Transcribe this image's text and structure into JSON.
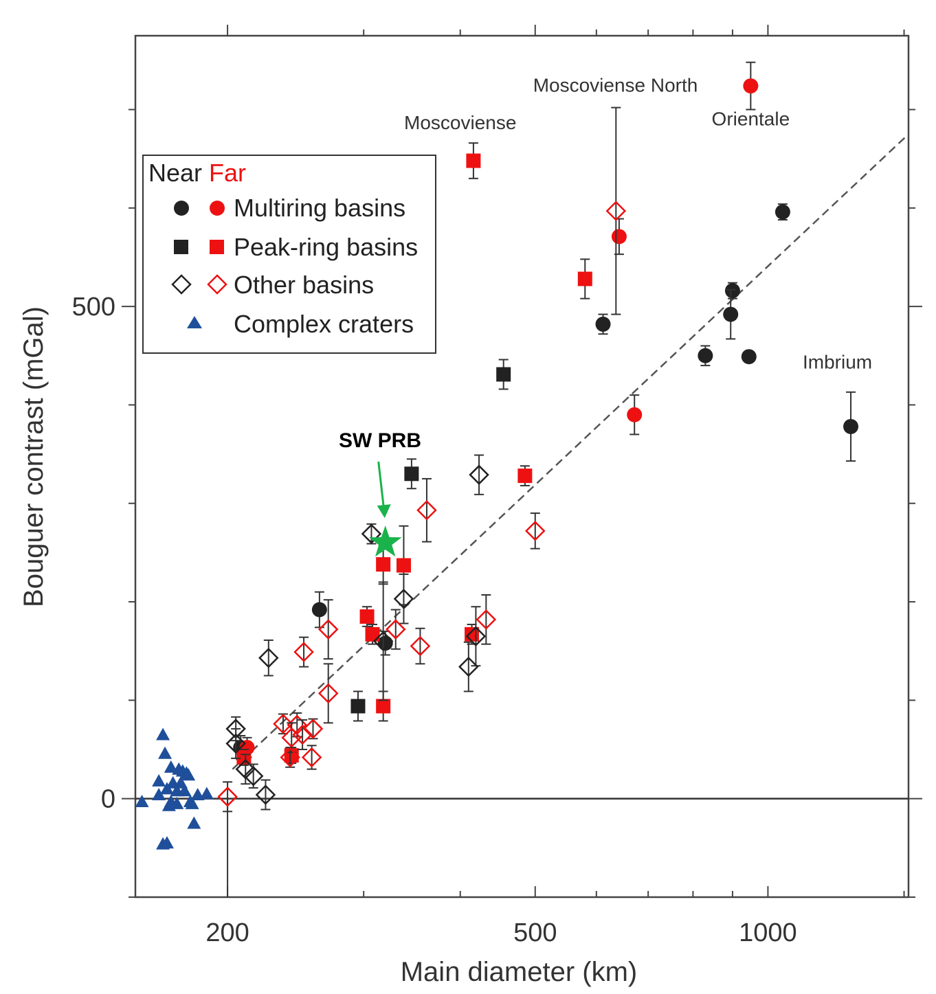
{
  "chart_data": {
    "type": "scatter",
    "xlabel": "Main diameter (km)",
    "ylabel": "Bouguer contrast (mGal)",
    "x_scale": "log",
    "xlim": [
      152,
      1520
    ],
    "ylim": [
      -100,
      775
    ],
    "x_ticks": [
      200,
      500,
      1000
    ],
    "y_ticks": [
      0,
      500
    ],
    "colors": {
      "near": "#222222",
      "far": "#ee1111",
      "crater": "#1f4f9a",
      "sw_prb": "#19b24b",
      "trend": "#555555"
    },
    "legend": {
      "header_near": "Near",
      "header_far": "Far",
      "placement": "top-left",
      "entries": [
        {
          "label": "Multiring basins",
          "marker": "circle"
        },
        {
          "label": "Peak-ring basins",
          "marker": "square"
        },
        {
          "label": "Other basins",
          "marker": "diamond"
        },
        {
          "label": "Complex craters",
          "marker": "triangle"
        }
      ]
    },
    "trendline": {
      "style": "dashed",
      "points": [
        [
          203,
          30
        ],
        [
          1520,
          675
        ]
      ]
    },
    "zero_line": 0,
    "annotations": [
      {
        "text": "Moscoviense",
        "x": 400,
        "y": 680
      },
      {
        "text": "Moscoviense North",
        "x": 635,
        "y": 718
      },
      {
        "text": "Orientale",
        "x": 950,
        "y": 684
      },
      {
        "text": "Imbrium",
        "x": 1230,
        "y": 437
      },
      {
        "text": "SW PRB",
        "x": 315,
        "y": 357
      }
    ],
    "sw_prb": {
      "x": 320,
      "y": 260
    },
    "series": [
      {
        "name": "Multiring basins",
        "side": "near",
        "marker": "circle",
        "points": [
          {
            "x": 612,
            "y": 482,
            "err": 10
          },
          {
            "x": 830,
            "y": 450,
            "err": 10
          },
          {
            "x": 900,
            "y": 516,
            "err": 8
          },
          {
            "x": 895,
            "y": 492,
            "err": 25
          },
          {
            "x": 945,
            "y": 449,
            "err": 5
          },
          {
            "x": 1045,
            "y": 596,
            "err": 8
          },
          {
            "x": 1280,
            "y": 378,
            "err": 35
          },
          {
            "x": 263,
            "y": 192,
            "err": 18
          },
          {
            "x": 320,
            "y": 158,
            "err": 12
          },
          {
            "x": 208,
            "y": 52,
            "err": 12
          }
        ]
      },
      {
        "name": "Multiring basins",
        "side": "far",
        "marker": "circle",
        "points": [
          {
            "x": 950,
            "y": 724,
            "err": 24
          },
          {
            "x": 642,
            "y": 571,
            "err": 18
          },
          {
            "x": 672,
            "y": 390,
            "err": 20
          },
          {
            "x": 212,
            "y": 52,
            "err": 10
          }
        ]
      },
      {
        "name": "Peak-ring basins",
        "side": "near",
        "marker": "square",
        "points": [
          {
            "x": 455,
            "y": 431,
            "err": 15
          },
          {
            "x": 346,
            "y": 330,
            "err": 15
          },
          {
            "x": 295,
            "y": 94,
            "err": 15
          }
        ]
      },
      {
        "name": "Peak-ring basins",
        "side": "far",
        "marker": "square",
        "points": [
          {
            "x": 416,
            "y": 648,
            "err": 18
          },
          {
            "x": 580,
            "y": 528,
            "err": 20
          },
          {
            "x": 485,
            "y": 328,
            "err": 10
          },
          {
            "x": 318,
            "y": 238,
            "err": 20
          },
          {
            "x": 338,
            "y": 237,
            "err": 40
          },
          {
            "x": 303,
            "y": 185,
            "err": 10
          },
          {
            "x": 308,
            "y": 167,
            "err": 10
          },
          {
            "x": 318,
            "y": 94,
            "err": 15
          },
          {
            "x": 414,
            "y": 167,
            "err": 10
          },
          {
            "x": 242,
            "y": 44,
            "err": 8
          },
          {
            "x": 210,
            "y": 42,
            "err": 8
          }
        ]
      },
      {
        "name": "Other basins",
        "side": "near",
        "marker": "diamond",
        "points": [
          {
            "x": 423,
            "y": 329,
            "err": 20
          },
          {
            "x": 307,
            "y": 269,
            "err": 10
          },
          {
            "x": 338,
            "y": 203,
            "err": 25
          },
          {
            "x": 226,
            "y": 143,
            "err": 18
          },
          {
            "x": 419,
            "y": 165,
            "err": 30
          },
          {
            "x": 410,
            "y": 134,
            "err": 25
          },
          {
            "x": 318,
            "y": 160,
            "err": 60
          },
          {
            "x": 205,
            "y": 71,
            "err": 12
          },
          {
            "x": 205,
            "y": 56,
            "err": 15
          },
          {
            "x": 211,
            "y": 30,
            "err": 15
          },
          {
            "x": 216,
            "y": 23,
            "err": 12
          },
          {
            "x": 224,
            "y": 4,
            "err": 15
          }
        ]
      },
      {
        "name": "Other basins",
        "side": "far",
        "marker": "diamond",
        "points": [
          {
            "x": 636,
            "y": 597,
            "err": 105
          },
          {
            "x": 362,
            "y": 293,
            "err": 32
          },
          {
            "x": 500,
            "y": 272,
            "err": 18
          },
          {
            "x": 432,
            "y": 182,
            "err": 25
          },
          {
            "x": 355,
            "y": 155,
            "err": 18
          },
          {
            "x": 330,
            "y": 172,
            "err": 20
          },
          {
            "x": 270,
            "y": 172,
            "err": 30
          },
          {
            "x": 270,
            "y": 107,
            "err": 30
          },
          {
            "x": 251,
            "y": 149,
            "err": 15
          },
          {
            "x": 258,
            "y": 71,
            "err": 10
          },
          {
            "x": 236,
            "y": 76,
            "err": 10
          },
          {
            "x": 246,
            "y": 75,
            "err": 12
          },
          {
            "x": 250,
            "y": 65,
            "err": 15
          },
          {
            "x": 242,
            "y": 62,
            "err": 15
          },
          {
            "x": 241,
            "y": 42,
            "err": 10
          },
          {
            "x": 257,
            "y": 42,
            "err": 12
          },
          {
            "x": 200,
            "y": 2,
            "err": 15
          }
        ]
      },
      {
        "name": "Complex craters",
        "side": "near",
        "marker": "triangle",
        "points": [
          {
            "x": 165,
            "y": 65
          },
          {
            "x": 166,
            "y": 46
          },
          {
            "x": 169,
            "y": 32
          },
          {
            "x": 173,
            "y": 30
          },
          {
            "x": 175,
            "y": 28
          },
          {
            "x": 177,
            "y": 26
          },
          {
            "x": 163,
            "y": 18
          },
          {
            "x": 170,
            "y": 16
          },
          {
            "x": 174,
            "y": 16
          },
          {
            "x": 178,
            "y": 24
          },
          {
            "x": 167,
            "y": 10
          },
          {
            "x": 172,
            "y": 8
          },
          {
            "x": 176,
            "y": 8
          },
          {
            "x": 163,
            "y": 4
          },
          {
            "x": 183,
            "y": 4
          },
          {
            "x": 188,
            "y": 5
          },
          {
            "x": 155,
            "y": -3
          },
          {
            "x": 169,
            "y": -3
          },
          {
            "x": 172,
            "y": -5
          },
          {
            "x": 179,
            "y": -3
          },
          {
            "x": 180,
            "y": -5
          },
          {
            "x": 168,
            "y": -7
          },
          {
            "x": 165,
            "y": -46
          },
          {
            "x": 167,
            "y": -45
          },
          {
            "x": 181,
            "y": -25
          }
        ]
      }
    ]
  }
}
